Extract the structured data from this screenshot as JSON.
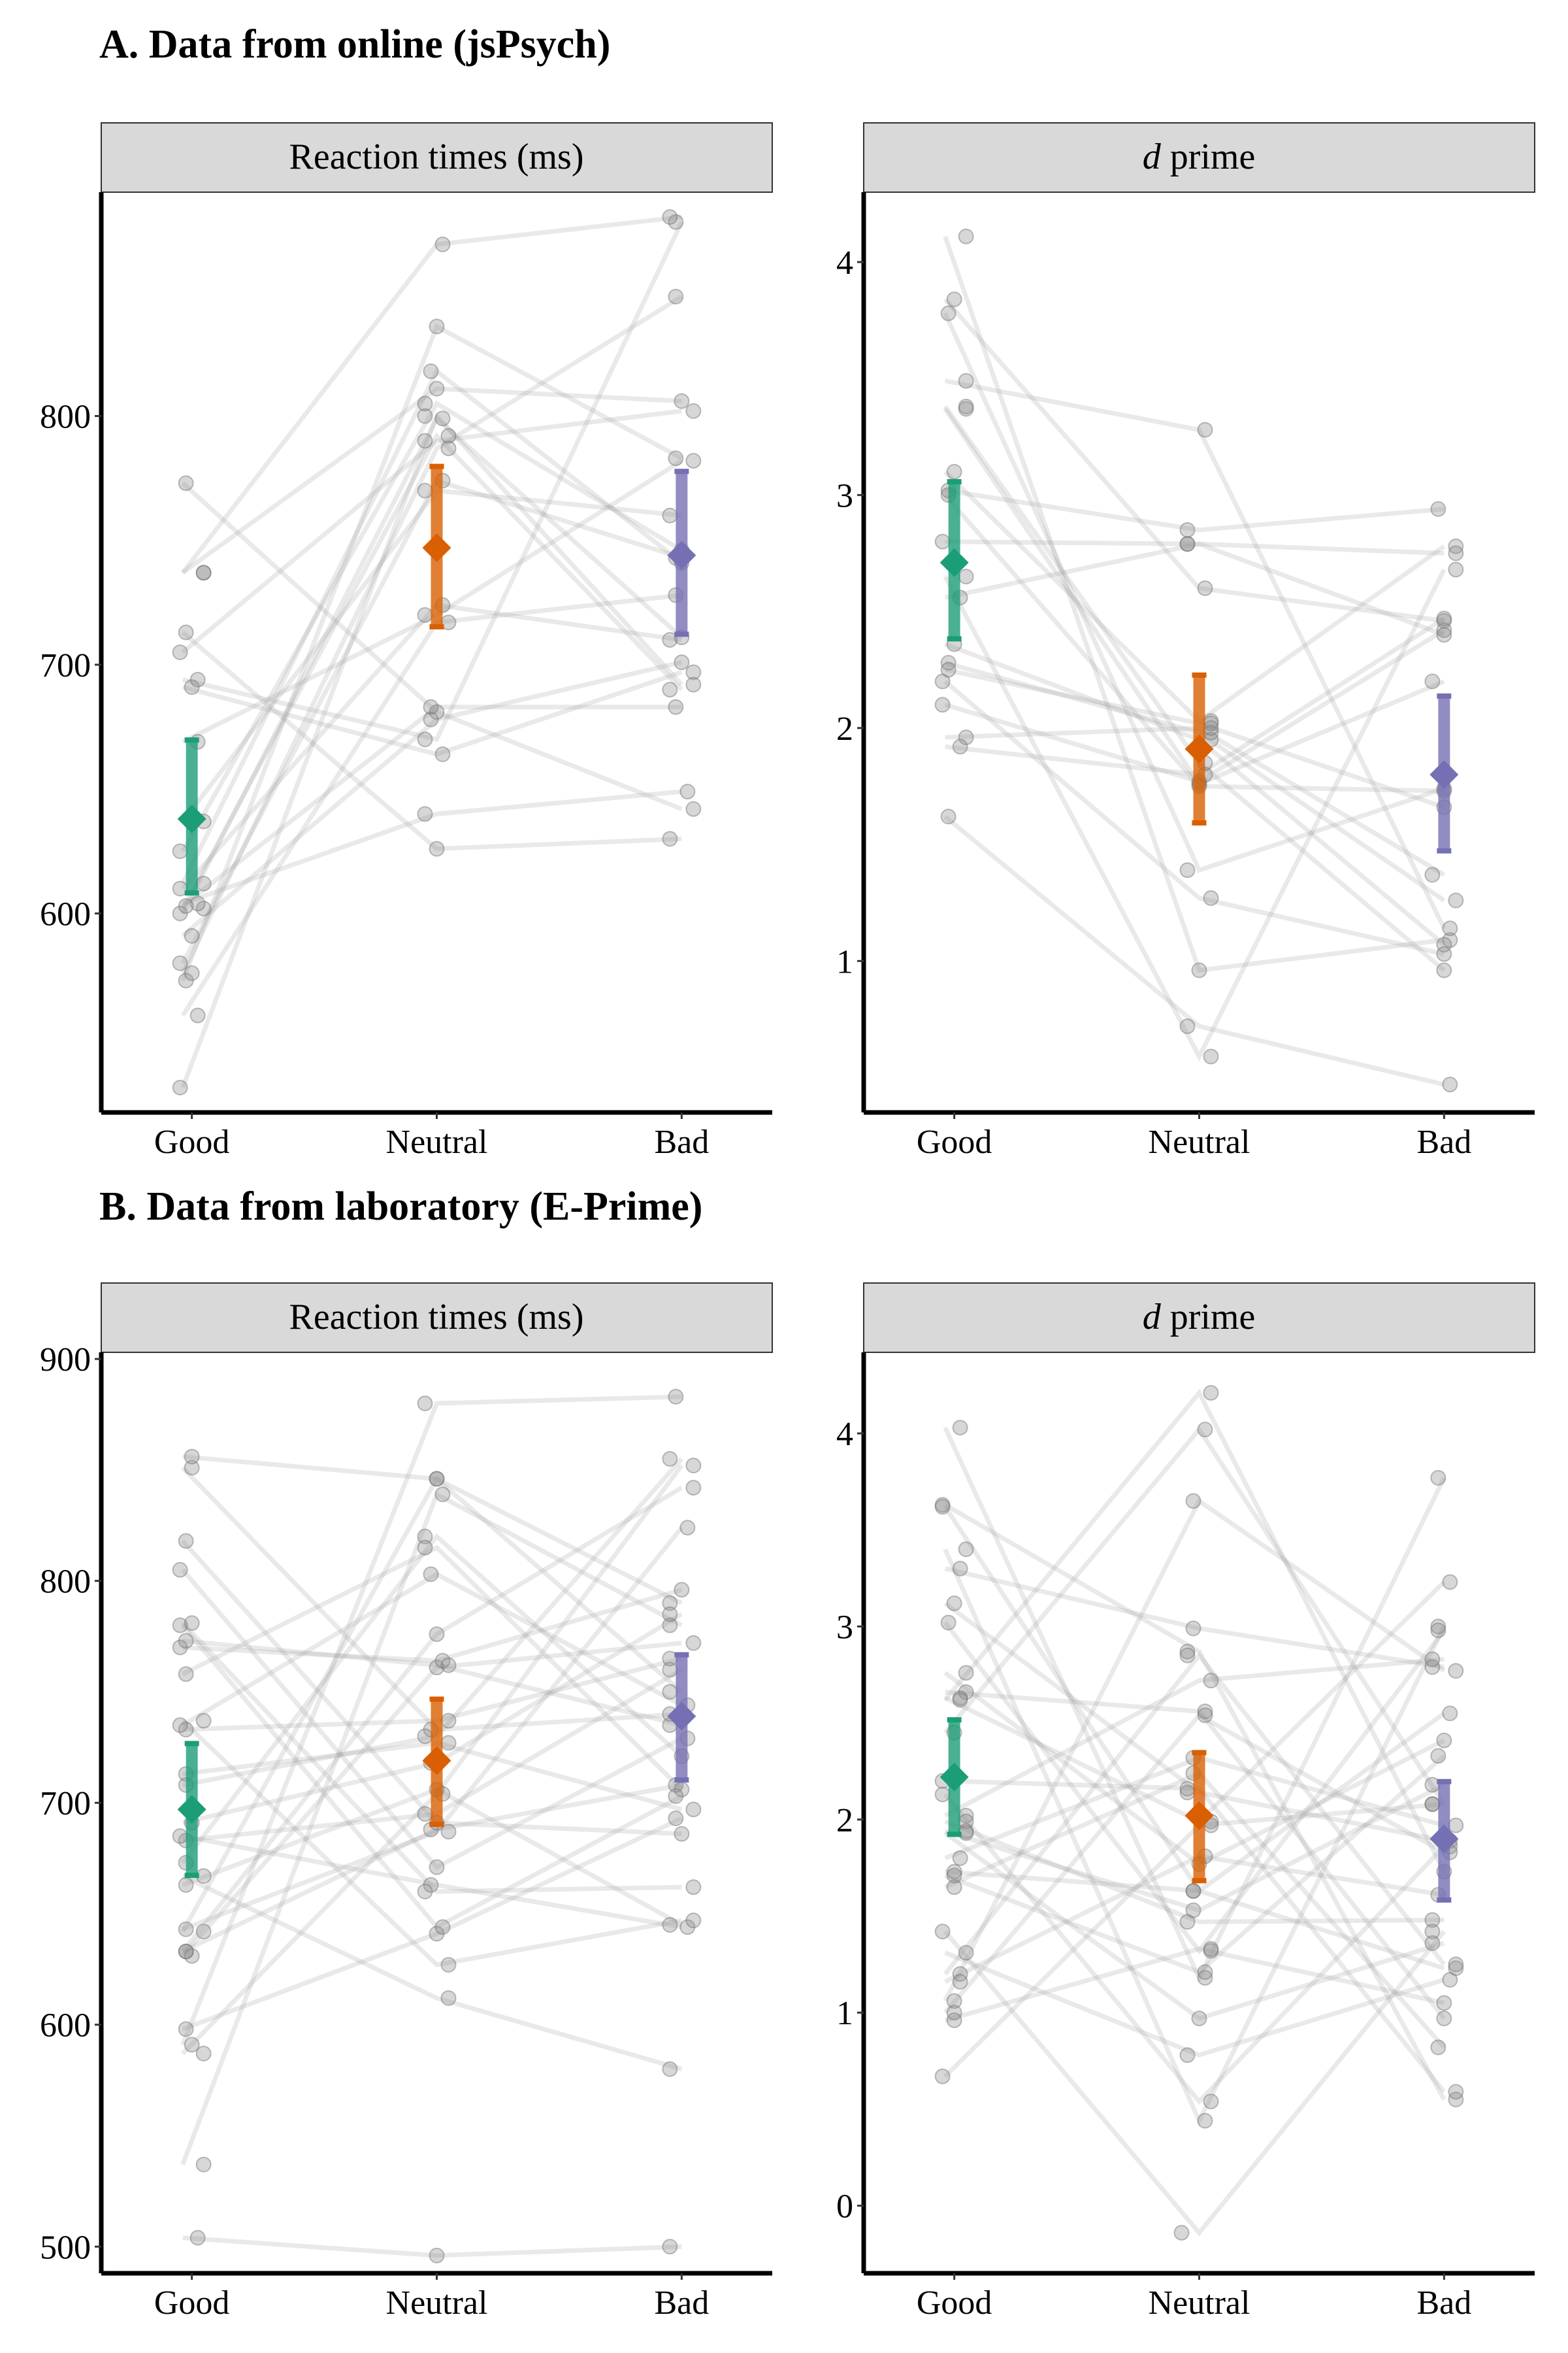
{
  "sections": {
    "A": "A. Data from online (jsPsych)",
    "B": "B. Data from laboratory (E-Prime)"
  },
  "chart_data": [
    {
      "type": "scatter",
      "section": "A",
      "strip_label": "Reaction times (ms)",
      "categories": [
        "Good",
        "Neutral",
        "Bad"
      ],
      "ylim": [
        520,
        890
      ],
      "yticks": [
        600,
        700,
        800
      ],
      "colors": {
        "Good": "#1b9e77",
        "Neutral": "#d95f02",
        "Bad": "#7570b3"
      },
      "summary": [
        {
          "category": "Good",
          "mean": 638,
          "ci": [
            608,
            670
          ]
        },
        {
          "category": "Neutral",
          "mean": 747,
          "ci": [
            715,
            780
          ]
        },
        {
          "category": "Bad",
          "mean": 744,
          "ci": [
            712,
            778
          ]
        }
      ],
      "subjects": [
        [
          573,
          836,
          783
        ],
        [
          612,
          818,
          741
        ],
        [
          602,
          792,
          690
        ],
        [
          637,
          770,
          760
        ],
        [
          600,
          799,
          711
        ],
        [
          610,
          724,
          710
        ],
        [
          691,
          664,
          697
        ],
        [
          625,
          805,
          746
        ],
        [
          694,
          670,
          878
        ],
        [
          737,
          811,
          806
        ],
        [
          705,
          790,
          802
        ],
        [
          737,
          869,
          880
        ],
        [
          713,
          626,
          630
        ],
        [
          773,
          681,
          642
        ],
        [
          669,
          720,
          782
        ],
        [
          604,
          640,
          649
        ],
        [
          576,
          787,
          848
        ],
        [
          530,
          800,
          692
        ],
        [
          580,
          774,
          743
        ],
        [
          559,
          717,
          728
        ],
        [
          603,
          683,
          683
        ],
        [
          591,
          678,
          701
        ]
      ]
    },
    {
      "type": "scatter",
      "section": "A",
      "strip_label": "d prime",
      "categories": [
        "Good",
        "Neutral",
        "Bad"
      ],
      "ylim": [
        0.35,
        4.3
      ],
      "yticks": [
        1,
        2,
        3,
        4
      ],
      "colors": {
        "Good": "#1b9e77",
        "Neutral": "#d95f02",
        "Bad": "#7570b3"
      },
      "summary": [
        {
          "category": "Good",
          "mean": 2.71,
          "ci": [
            2.38,
            3.06
          ]
        },
        {
          "category": "Neutral",
          "mean": 1.91,
          "ci": [
            1.59,
            2.23
          ]
        },
        {
          "category": "Bad",
          "mean": 1.8,
          "ci": [
            1.47,
            2.14
          ]
        }
      ],
      "subjects": [
        [
          4.11,
          0.96,
          1.09
        ],
        [
          3.84,
          2.6,
          2.46
        ],
        [
          3.78,
          1.39,
          1.74
        ],
        [
          3.49,
          3.28,
          1.14
        ],
        [
          3.37,
          1.76,
          2.2
        ],
        [
          3.02,
          2.85,
          2.94
        ],
        [
          3.1,
          2.03,
          2.78
        ],
        [
          2.8,
          2.79,
          2.75
        ],
        [
          2.65,
          0.59,
          2.68
        ],
        [
          2.36,
          1.95,
          1.07
        ],
        [
          2.28,
          1.98,
          1.26
        ],
        [
          2.2,
          1.27,
          1.03
        ],
        [
          2.1,
          1.77,
          2.42
        ],
        [
          1.96,
          2.0,
          1.37
        ],
        [
          1.92,
          1.8,
          2.47
        ],
        [
          1.62,
          0.72,
          0.47
        ],
        [
          3.38,
          1.85,
          0.96
        ],
        [
          2.25,
          2.02,
          1.66
        ],
        [
          2.56,
          2.79,
          2.4
        ],
        [
          3.0,
          1.75,
          1.73
        ]
      ]
    },
    {
      "type": "scatter",
      "section": "B",
      "strip_label": "Reaction times (ms)",
      "categories": [
        "Good",
        "Neutral",
        "Bad"
      ],
      "ylim": [
        488,
        903
      ],
      "yticks": [
        500,
        600,
        700,
        800,
        900
      ],
      "colors": {
        "Good": "#1b9e77",
        "Neutral": "#d95f02",
        "Bad": "#7570b3"
      },
      "summary": [
        {
          "category": "Good",
          "mean": 697,
          "ci": [
            667,
            727
          ]
        },
        {
          "category": "Neutral",
          "mean": 719,
          "ci": [
            690,
            747
          ]
        },
        {
          "category": "Bad",
          "mean": 739,
          "ci": [
            710,
            767
          ]
        }
      ],
      "subjects": [
        [
          504,
          496,
          500
        ],
        [
          537,
          839,
          780
        ],
        [
          587,
          704,
          852
        ],
        [
          591,
          880,
          883
        ],
        [
          598,
          641,
          693
        ],
        [
          631,
          761,
          772
        ],
        [
          633,
          688,
          708
        ],
        [
          633,
          776,
          842
        ],
        [
          642,
          846,
          790
        ],
        [
          643,
          687,
          824
        ],
        [
          667,
          612,
          580
        ],
        [
          673,
          820,
          721
        ],
        [
          683,
          695,
          760
        ],
        [
          685,
          663,
          644
        ],
        [
          691,
          718,
          785
        ],
        [
          713,
          727,
          697
        ],
        [
          733,
          737,
          765
        ],
        [
          735,
          803,
          744
        ],
        [
          737,
          627,
          647
        ],
        [
          758,
          815,
          706
        ],
        [
          770,
          764,
          796
        ],
        [
          781,
          660,
          662
        ],
        [
          805,
          671,
          729
        ],
        [
          818,
          691,
          686
        ],
        [
          851,
          733,
          740
        ],
        [
          856,
          846,
          750
        ],
        [
          773,
          762,
          735
        ],
        [
          780,
          644,
          703
        ],
        [
          708,
          730,
          855
        ],
        [
          663,
          706,
          645
        ]
      ]
    },
    {
      "type": "scatter",
      "section": "B",
      "strip_label": "d prime",
      "categories": [
        "Good",
        "Neutral",
        "Bad"
      ],
      "ylim": [
        -0.35,
        4.42
      ],
      "yticks": [
        0,
        1,
        2,
        3,
        4
      ],
      "colors": {
        "Good": "#1b9e77",
        "Neutral": "#d95f02",
        "Bad": "#7570b3"
      },
      "summary": [
        {
          "category": "Good",
          "mean": 2.22,
          "ci": [
            1.92,
            2.52
          ]
        },
        {
          "category": "Neutral",
          "mean": 2.02,
          "ci": [
            1.68,
            2.35
          ]
        },
        {
          "category": "Bad",
          "mean": 1.9,
          "ci": [
            1.58,
            2.2
          ]
        }
      ],
      "subjects": [
        [
          4.03,
          1.18,
          3.77
        ],
        [
          3.63,
          2.87,
          0.55
        ],
        [
          3.62,
          1.63,
          1.23
        ],
        [
          3.4,
          0.44,
          3.0
        ],
        [
          3.3,
          2.99,
          2.79
        ],
        [
          3.12,
          2.14,
          1.89
        ],
        [
          3.02,
          1.32,
          2.98
        ],
        [
          2.76,
          1.77,
          2.41
        ],
        [
          2.66,
          2.56,
          0.97
        ],
        [
          2.63,
          1.99,
          3.23
        ],
        [
          2.45,
          4.02,
          2.08
        ],
        [
          2.2,
          2.16,
          0.59
        ],
        [
          2.13,
          0.54,
          1.86
        ],
        [
          2.02,
          2.72,
          2.83
        ],
        [
          1.99,
          1.47,
          1.48
        ],
        [
          1.94,
          1.53,
          2.18
        ],
        [
          1.8,
          2.32,
          1.97
        ],
        [
          1.73,
          1.63,
          2.55
        ],
        [
          1.65,
          2.24,
          0.82
        ],
        [
          1.42,
          -0.14,
          1.42
        ],
        [
          1.31,
          0.78,
          1.17
        ],
        [
          1.2,
          2.85,
          1.25
        ],
        [
          1.16,
          1.81,
          1.61
        ],
        [
          1.06,
          3.65,
          2.77
        ],
        [
          1.0,
          2.54,
          1.83
        ],
        [
          0.96,
          1.33,
          1.05
        ],
        [
          0.67,
          1.97,
          2.08
        ],
        [
          2.62,
          4.21,
          1.73
        ],
        [
          1.71,
          1.21,
          2.33
        ],
        [
          1.93,
          0.97,
          1.36
        ]
      ]
    }
  ]
}
